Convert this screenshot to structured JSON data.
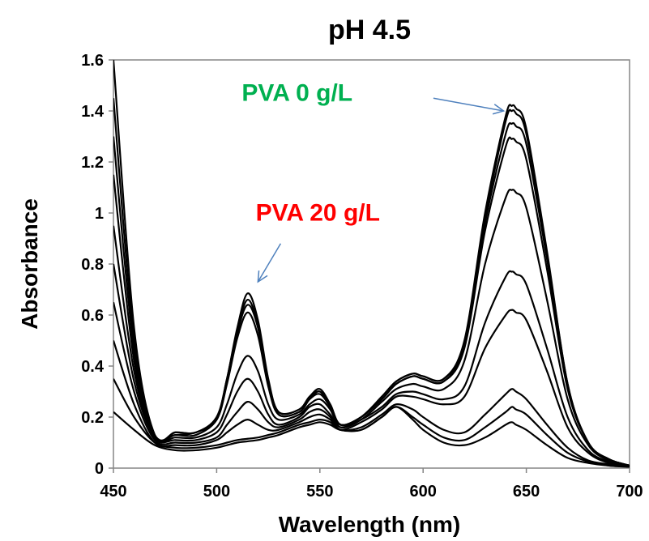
{
  "chart_data": {
    "type": "line",
    "title": "pH 4.5",
    "xlabel": "Wavelength (nm)",
    "ylabel": "Absorbance",
    "xlim": [
      450,
      700
    ],
    "ylim": [
      0,
      1.6
    ],
    "x_ticks": [
      "450",
      "500",
      "550",
      "600",
      "650",
      "700"
    ],
    "y_ticks": [
      "0",
      "0.2",
      "0.4",
      "0.6",
      "0.8",
      "1",
      "1.2",
      "1.4",
      "1.6"
    ],
    "grid": false,
    "legend": "none",
    "line_color": "#000000",
    "x": [
      450,
      460,
      470,
      480,
      490,
      500,
      505,
      510,
      515,
      520,
      525,
      530,
      540,
      545,
      550,
      555,
      560,
      570,
      580,
      587,
      595,
      600,
      610,
      620,
      630,
      640,
      643,
      645,
      650,
      660,
      670,
      680,
      690,
      700
    ],
    "series": [
      {
        "values": [
          1.6,
          0.55,
          0.13,
          0.14,
          0.14,
          0.2,
          0.35,
          0.55,
          0.685,
          0.58,
          0.35,
          0.22,
          0.23,
          0.28,
          0.31,
          0.25,
          0.17,
          0.2,
          0.28,
          0.34,
          0.37,
          0.36,
          0.35,
          0.5,
          1.0,
          1.38,
          1.42,
          1.41,
          1.33,
          0.85,
          0.33,
          0.1,
          0.035,
          0.01
        ]
      },
      {
        "values": [
          1.45,
          0.5,
          0.13,
          0.14,
          0.14,
          0.2,
          0.35,
          0.54,
          0.66,
          0.56,
          0.34,
          0.22,
          0.23,
          0.28,
          0.3,
          0.25,
          0.17,
          0.2,
          0.28,
          0.34,
          0.37,
          0.36,
          0.35,
          0.49,
          0.98,
          1.36,
          1.4,
          1.39,
          1.31,
          0.84,
          0.33,
          0.1,
          0.035,
          0.01
        ]
      },
      {
        "values": [
          1.3,
          0.46,
          0.13,
          0.13,
          0.14,
          0.19,
          0.34,
          0.53,
          0.64,
          0.55,
          0.33,
          0.21,
          0.22,
          0.27,
          0.3,
          0.24,
          0.17,
          0.2,
          0.27,
          0.33,
          0.36,
          0.35,
          0.34,
          0.48,
          0.96,
          1.31,
          1.35,
          1.34,
          1.27,
          0.82,
          0.32,
          0.1,
          0.035,
          0.01
        ]
      },
      {
        "values": [
          1.15,
          0.42,
          0.13,
          0.13,
          0.13,
          0.19,
          0.33,
          0.51,
          0.61,
          0.52,
          0.32,
          0.21,
          0.22,
          0.27,
          0.29,
          0.24,
          0.17,
          0.2,
          0.27,
          0.33,
          0.36,
          0.35,
          0.34,
          0.47,
          0.93,
          1.26,
          1.29,
          1.28,
          1.21,
          0.78,
          0.31,
          0.1,
          0.035,
          0.01
        ]
      },
      {
        "values": [
          0.95,
          0.38,
          0.12,
          0.12,
          0.12,
          0.16,
          0.25,
          0.37,
          0.44,
          0.38,
          0.25,
          0.19,
          0.21,
          0.25,
          0.27,
          0.23,
          0.16,
          0.19,
          0.26,
          0.31,
          0.33,
          0.32,
          0.31,
          0.42,
          0.8,
          1.06,
          1.09,
          1.08,
          1.02,
          0.66,
          0.27,
          0.09,
          0.03,
          0.01
        ]
      },
      {
        "values": [
          0.8,
          0.34,
          0.12,
          0.11,
          0.11,
          0.14,
          0.21,
          0.3,
          0.35,
          0.3,
          0.21,
          0.17,
          0.2,
          0.24,
          0.25,
          0.21,
          0.16,
          0.19,
          0.24,
          0.29,
          0.3,
          0.29,
          0.27,
          0.32,
          0.57,
          0.75,
          0.77,
          0.76,
          0.72,
          0.47,
          0.2,
          0.07,
          0.025,
          0.01
        ]
      },
      {
        "values": [
          0.65,
          0.3,
          0.11,
          0.1,
          0.1,
          0.12,
          0.17,
          0.22,
          0.26,
          0.23,
          0.18,
          0.16,
          0.19,
          0.22,
          0.23,
          0.2,
          0.15,
          0.18,
          0.23,
          0.28,
          0.28,
          0.27,
          0.25,
          0.28,
          0.47,
          0.6,
          0.62,
          0.61,
          0.58,
          0.38,
          0.16,
          0.06,
          0.02,
          0.01
        ]
      },
      {
        "values": [
          0.5,
          0.25,
          0.1,
          0.09,
          0.09,
          0.11,
          0.14,
          0.17,
          0.19,
          0.17,
          0.15,
          0.15,
          0.18,
          0.2,
          0.21,
          0.19,
          0.15,
          0.16,
          0.21,
          0.25,
          0.23,
          0.2,
          0.15,
          0.14,
          0.21,
          0.29,
          0.31,
          0.3,
          0.27,
          0.17,
          0.08,
          0.03,
          0.015,
          0.005
        ]
      },
      {
        "values": [
          0.35,
          0.2,
          0.1,
          0.08,
          0.08,
          0.09,
          0.1,
          0.11,
          0.115,
          0.12,
          0.13,
          0.14,
          0.17,
          0.18,
          0.19,
          0.18,
          0.15,
          0.15,
          0.2,
          0.24,
          0.2,
          0.17,
          0.12,
          0.11,
          0.16,
          0.22,
          0.24,
          0.23,
          0.21,
          0.13,
          0.06,
          0.025,
          0.01,
          0.005
        ]
      },
      {
        "values": [
          0.22,
          0.15,
          0.09,
          0.07,
          0.07,
          0.08,
          0.09,
          0.1,
          0.105,
          0.11,
          0.12,
          0.13,
          0.16,
          0.17,
          0.18,
          0.17,
          0.15,
          0.15,
          0.2,
          0.24,
          0.19,
          0.15,
          0.1,
          0.09,
          0.12,
          0.17,
          0.18,
          0.17,
          0.15,
          0.09,
          0.04,
          0.02,
          0.01,
          0.005
        ]
      }
    ],
    "annotations": [
      {
        "text": "PVA 0 g/L",
        "color": "#00B050",
        "arrow_color": "#4F81BD",
        "text_at": [
          539,
          1.44
        ],
        "arrow_from": [
          605,
          1.45
        ],
        "arrow_to": [
          639,
          1.4
        ]
      },
      {
        "text": "PVA 20 g/L",
        "color": "#FF0000",
        "arrow_color": "#4F81BD",
        "text_at": [
          549,
          0.97
        ],
        "arrow_from": [
          531,
          0.88
        ],
        "arrow_to": [
          520,
          0.73
        ]
      }
    ]
  }
}
